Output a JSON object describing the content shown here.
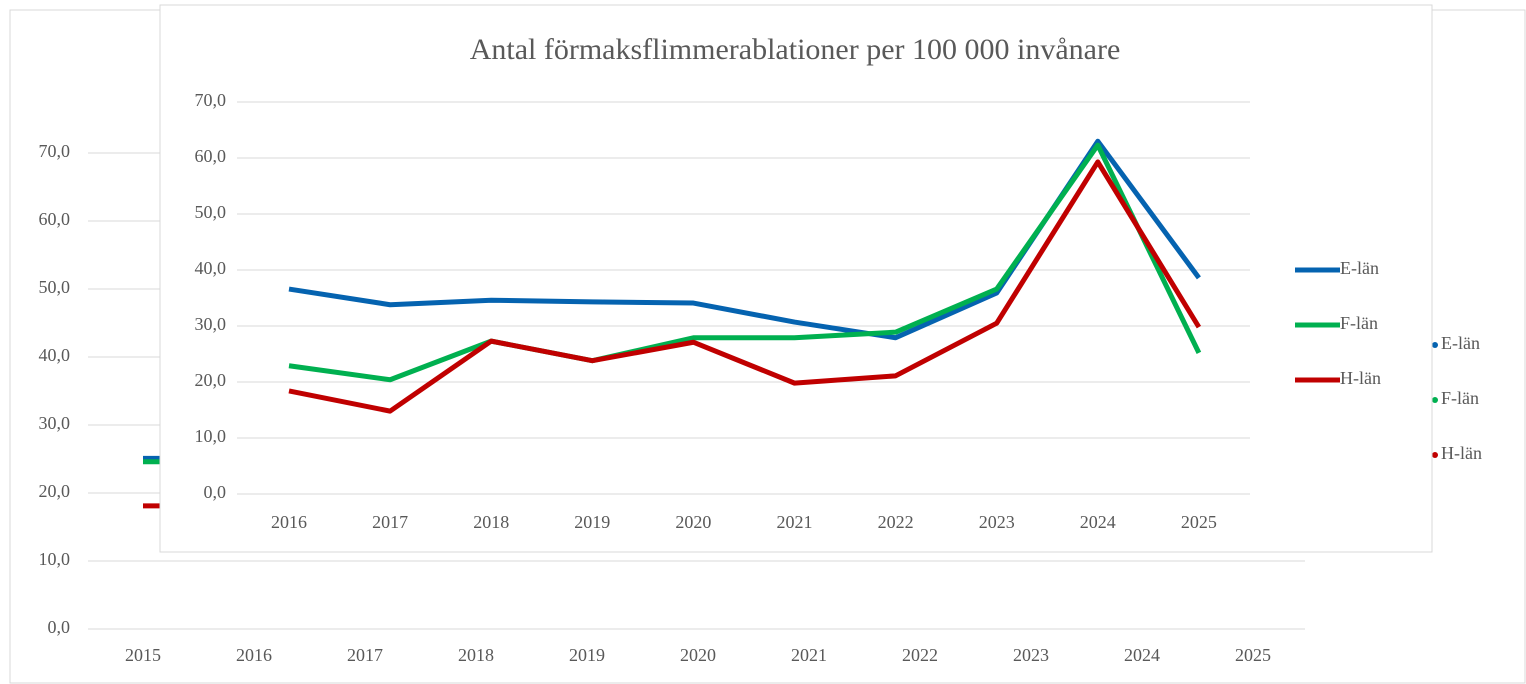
{
  "chart_data": [
    {
      "type": "line",
      "categories": [
        "2015",
        "2016",
        "2017",
        "2018",
        "2019",
        "2020",
        "2021",
        "2022",
        "2023",
        "2024",
        "2025"
      ],
      "series": [
        {
          "name": "E-län",
          "color": "#0563b0",
          "values": [
            25.1,
            null,
            null,
            null,
            null,
            null,
            null,
            null,
            null,
            null,
            null
          ]
        },
        {
          "name": "F-län",
          "color": "#00b050",
          "values": [
            24.6,
            null,
            null,
            null,
            null,
            null,
            null,
            null,
            null,
            null,
            null
          ]
        },
        {
          "name": "H-län",
          "color": "#c00000",
          "values": [
            18.1,
            null,
            null,
            null,
            null,
            null,
            null,
            null,
            null,
            null,
            null
          ]
        }
      ],
      "ylim": [
        0,
        70
      ],
      "yticks": [
        {
          "value": 0,
          "label": "0,0"
        },
        {
          "value": 10,
          "label": "10,0"
        },
        {
          "value": 20,
          "label": "20,0"
        },
        {
          "value": 30,
          "label": "30,0"
        },
        {
          "value": 40,
          "label": "40,0"
        },
        {
          "value": 50,
          "label": "50,0"
        },
        {
          "value": 60,
          "label": "60,0"
        },
        {
          "value": 70,
          "label": "70,0"
        }
      ],
      "grid": true,
      "legend": "right"
    },
    {
      "type": "line",
      "title": "Antal förmaksflimmerablationer per 100 000 invånare",
      "categories": [
        "2016",
        "2017",
        "2018",
        "2019",
        "2020",
        "2021",
        "2022",
        "2023",
        "2024",
        "2025"
      ],
      "series": [
        {
          "name": "E-län",
          "color": "#0563b0",
          "values": [
            36.6,
            33.8,
            34.6,
            34.3,
            34.1,
            30.7,
            27.9,
            35.9,
            63.0,
            38.6
          ]
        },
        {
          "name": "F-län",
          "color": "#00b050",
          "values": [
            22.9,
            20.4,
            27.3,
            23.8,
            27.9,
            27.9,
            28.9,
            36.6,
            62.3,
            25.2
          ]
        },
        {
          "name": "H-län",
          "color": "#c00000",
          "values": [
            18.4,
            14.8,
            27.3,
            23.8,
            27.1,
            19.8,
            21.1,
            30.5,
            59.3,
            29.8
          ]
        }
      ],
      "ylim": [
        0,
        70
      ],
      "yticks": [
        {
          "value": 0,
          "label": "0,0"
        },
        {
          "value": 10,
          "label": "10,0"
        },
        {
          "value": 20,
          "label": "20,0"
        },
        {
          "value": 30,
          "label": "30,0"
        },
        {
          "value": 40,
          "label": "40,0"
        },
        {
          "value": 50,
          "label": "50,0"
        },
        {
          "value": 60,
          "label": "60,0"
        },
        {
          "value": 70,
          "label": "70,0"
        }
      ],
      "grid": true,
      "legend": "right"
    }
  ]
}
